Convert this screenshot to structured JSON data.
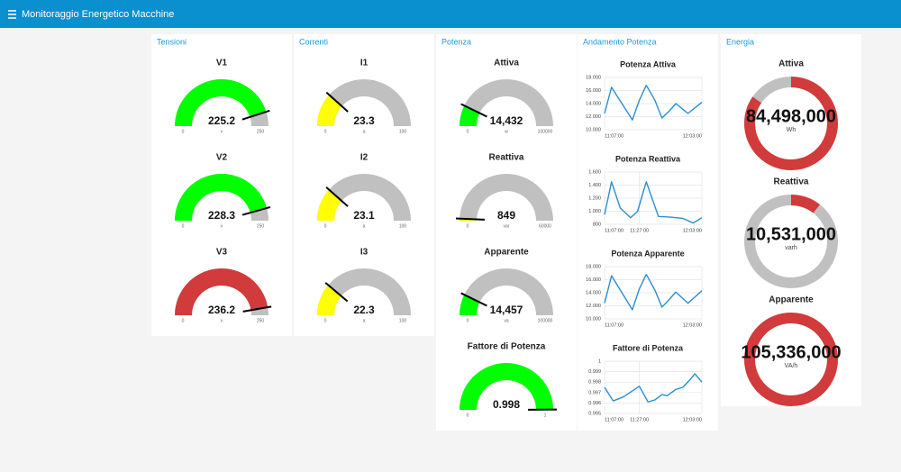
{
  "header": {
    "title": "Monitoraggio Energetico Macchine"
  },
  "groups": [
    {
      "title": "Tensioni",
      "widgets": [
        {
          "type": "gauge",
          "label": "V1",
          "value": 225.2,
          "units": "v",
          "min": 0,
          "max": 250,
          "color": "#00ff00"
        },
        {
          "type": "gauge",
          "label": "V2",
          "value": 228.3,
          "units": "v",
          "min": 0,
          "max": 250,
          "color": "#00ff00"
        },
        {
          "type": "gauge",
          "label": "V3",
          "value": 236.2,
          "units": "v",
          "min": 0,
          "max": 250,
          "color": "#d13b3b"
        }
      ]
    },
    {
      "title": "Correnti",
      "widgets": [
        {
          "type": "gauge",
          "label": "I1",
          "value": 23.3,
          "units": "a",
          "min": 0,
          "max": 100,
          "color": "#ffff00"
        },
        {
          "type": "gauge",
          "label": "I2",
          "value": 23.1,
          "units": "a",
          "min": 0,
          "max": 100,
          "color": "#ffff00"
        },
        {
          "type": "gauge",
          "label": "I3",
          "value": 22.3,
          "units": "a",
          "min": 0,
          "max": 100,
          "color": "#ffff00"
        }
      ]
    },
    {
      "title": "Potenza",
      "widgets": [
        {
          "type": "gauge",
          "label": "Attiva",
          "value": 14432,
          "value_label": "14,432",
          "units": "w",
          "min": 0,
          "max": 100000,
          "color": "#00ff00"
        },
        {
          "type": "gauge",
          "label": "Reattiva",
          "value": 849,
          "units": "var",
          "min": 0,
          "max": 60000,
          "color": "#ffff00"
        },
        {
          "type": "gauge",
          "label": "Apparente",
          "value": 14457,
          "value_label": "14,457",
          "units": "va",
          "min": 0,
          "max": 100000,
          "color": "#00ff00"
        },
        {
          "type": "gauge",
          "label": "Fattore di Potenza",
          "value": 0.998,
          "min": 0,
          "max": 1,
          "color": "#00ff00"
        }
      ]
    },
    {
      "title": "Andamento Potenza",
      "widgets": [
        {
          "type": "line",
          "label": "Potenza Attiva",
          "color": "#2a8fd0",
          "xlim": [
            "11:07:00",
            "12:03:00"
          ],
          "xticks": [
            "11:07:00",
            "12:03:00"
          ],
          "x": [
            "11:07:00",
            "11:11:00",
            "11:17:00",
            "11:23:00",
            "11:27:00",
            "11:31:00",
            "11:36:00",
            "11:40:00",
            "11:44:00",
            "11:48:00",
            "11:55:00",
            "12:03:00"
          ],
          "values": [
            12500,
            16500,
            14000,
            11500,
            14500,
            16800,
            14500,
            11800,
            12800,
            14000,
            12500,
            14200
          ],
          "ylim": [
            10000,
            18000
          ],
          "yticks": [
            {
              "value": 10000,
              "label": "10.000"
            },
            {
              "value": 12000,
              "label": "12.000"
            },
            {
              "value": 14000,
              "label": "14.000"
            },
            {
              "value": 16000,
              "label": "16.000"
            },
            {
              "value": 18000,
              "label": "18.000"
            }
          ]
        },
        {
          "type": "line",
          "label": "Potenza Reattiva",
          "color": "#2a8fd0",
          "xlim": [
            "11:07:00",
            "12:03:00"
          ],
          "xticks": [
            "11:07:00",
            "11:27:00",
            "12:03:00"
          ],
          "x": [
            "11:07:00",
            "11:11:00",
            "11:16:00",
            "11:22:00",
            "11:26:00",
            "11:31:00",
            "11:38:00",
            "11:45:00",
            "11:52:00",
            "11:58:00",
            "12:03:00"
          ],
          "values": [
            950,
            1450,
            1050,
            900,
            1000,
            1450,
            920,
            910,
            890,
            820,
            900
          ],
          "ylim": [
            800,
            1600
          ],
          "yticks": [
            800,
            {
              "value": 1000,
              "label": "1.000"
            },
            {
              "value": 1200,
              "label": "1.200"
            },
            {
              "value": 1400,
              "label": "1.400"
            },
            {
              "value": 1600,
              "label": "1.600"
            }
          ]
        },
        {
          "type": "line",
          "label": "Potenza Apparente",
          "color": "#2a8fd0",
          "xlim": [
            "11:07:00",
            "12:03:00"
          ],
          "xticks": [
            "11:07:00",
            "12:03:00"
          ],
          "x": [
            "11:07:00",
            "11:11:00",
            "11:17:00",
            "11:23:00",
            "11:27:00",
            "11:31:00",
            "11:36:00",
            "11:40:00",
            "11:44:00",
            "11:48:00",
            "11:55:00",
            "12:03:00"
          ],
          "values": [
            12400,
            16600,
            14000,
            11400,
            14600,
            16800,
            14400,
            11800,
            12900,
            14100,
            12400,
            14300
          ],
          "ylim": [
            10000,
            18000
          ],
          "yticks": [
            {
              "value": 10000,
              "label": "10.000"
            },
            {
              "value": 12000,
              "label": "12.000"
            },
            {
              "value": 14000,
              "label": "14.000"
            },
            {
              "value": 16000,
              "label": "16.000"
            },
            {
              "value": 18000,
              "label": "18.000"
            }
          ]
        },
        {
          "type": "line",
          "label": "Fattore di Potenza",
          "color": "#2a8fd0",
          "xlim": [
            "11:07:00",
            "12:03:00"
          ],
          "xticks": [
            "11:07:00",
            "11:27:00",
            "12:03:00"
          ],
          "x": [
            "11:07:00",
            "11:12:00",
            "11:18:00",
            "11:27:00",
            "11:32:00",
            "11:36:00",
            "11:40:00",
            "11:43:00",
            "11:48:00",
            "11:52:00",
            "11:56:00",
            "11:59:00",
            "12:03:00"
          ],
          "values": [
            0.9975,
            0.9962,
            0.9966,
            0.9976,
            0.9961,
            0.9963,
            0.9968,
            0.9967,
            0.9973,
            0.9975,
            0.9982,
            0.9988,
            0.998
          ],
          "ylim": [
            0.995,
            1
          ],
          "yticks": [
            0.995,
            0.996,
            0.997,
            0.998,
            0.999,
            1
          ]
        }
      ]
    },
    {
      "title": "Energia",
      "widgets": [
        {
          "type": "donut",
          "label": "Attiva",
          "value": 84498000,
          "value_label": "84,498,000",
          "units": "Wh",
          "max": 100000000,
          "color": "#d13b3b"
        },
        {
          "type": "donut",
          "label": "Reattiva",
          "value": 10531000,
          "value_label": "10,531,000",
          "units": "varh",
          "max": 100000000,
          "color": "#d13b3b"
        },
        {
          "type": "donut",
          "label": "Apparente",
          "value": 105336000,
          "value_label": "105,336,000",
          "units": "VA/h",
          "max": 100000000,
          "color": "#d13b3b"
        }
      ]
    }
  ]
}
